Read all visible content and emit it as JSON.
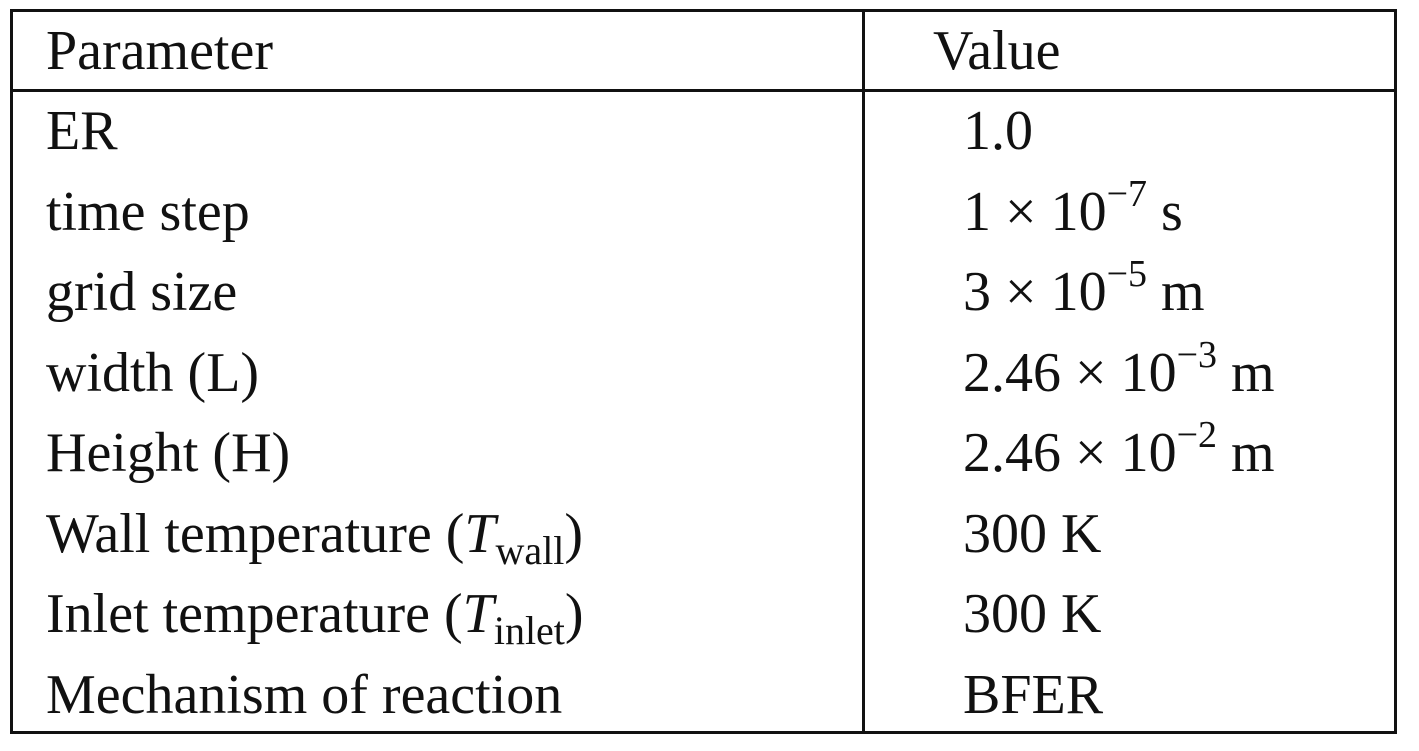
{
  "table": {
    "headers": {
      "parameter": "Parameter",
      "value": "Value"
    },
    "rows": [
      {
        "parameter": "ER",
        "value": "1.0"
      },
      {
        "parameter": "time step",
        "mantissa": "1 × 10",
        "exponent": "−7",
        "unit": " s"
      },
      {
        "parameter": "grid size",
        "mantissa": "3 × 10",
        "exponent": "−5",
        "unit": " m"
      },
      {
        "parameter": "width (L)",
        "mantissa": "2.46 × 10",
        "exponent": "−3",
        "unit": " m"
      },
      {
        "parameter": "Height (H)",
        "mantissa": "2.46 × 10",
        "exponent": "−2",
        "unit": " m"
      },
      {
        "parameter_prefix": "Wall temperature (",
        "symbol": "T",
        "subscript": "wall",
        "parameter_suffix": ")",
        "value": "300 K"
      },
      {
        "parameter_prefix": "Inlet temperature (",
        "symbol": "T",
        "subscript": "inlet",
        "parameter_suffix": ")",
        "value": "300 K"
      },
      {
        "parameter": "Mechanism of reaction",
        "value": "BFER"
      }
    ]
  }
}
